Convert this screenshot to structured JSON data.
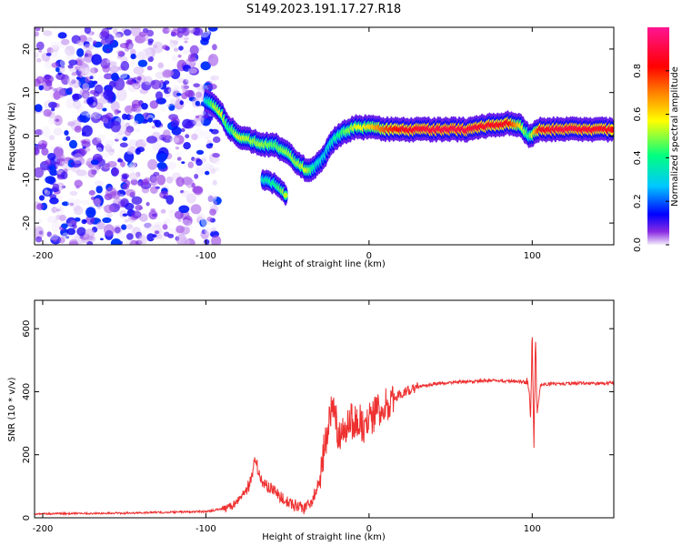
{
  "title": "S149.2023.191.17.27.R18",
  "chart_data": [
    {
      "type": "heatmap",
      "xlabel": "Height of straight line (km)",
      "ylabel": "Frequency (Hz)",
      "xlim": [
        -205,
        150
      ],
      "ylim": [
        -25,
        25
      ],
      "xticks": [
        -200,
        -100,
        0,
        100
      ],
      "yticks": [
        -20,
        -10,
        0,
        10,
        20
      ],
      "colorbar": {
        "label": "Normalized spectral amplitude",
        "range": [
          0,
          1
        ],
        "ticks": [
          "0.0",
          "0.2",
          "0.4",
          "0.6",
          "0.8"
        ],
        "colors": [
          "#f4eefc",
          "#8a2be2",
          "#0000ff",
          "#00c8ff",
          "#00ff80",
          "#ffff00",
          "#ff8000",
          "#ff0000",
          "#ff1493"
        ]
      },
      "noise_region_x": [
        -205,
        -93
      ],
      "ridge": [
        {
          "x": -100,
          "f": 8,
          "a": 0.3
        },
        {
          "x": -95,
          "f": 7,
          "a": 0.5
        },
        {
          "x": -90,
          "f": 5,
          "a": 0.55
        },
        {
          "x": -86,
          "f": 2,
          "a": 0.4
        },
        {
          "x": -80,
          "f": 0,
          "a": 0.55
        },
        {
          "x": -72,
          "f": -1,
          "a": 0.5
        },
        {
          "x": -65,
          "f": -2,
          "a": 0.5
        },
        {
          "x": -58,
          "f": -2,
          "a": 0.45
        },
        {
          "x": -50,
          "f": -4,
          "a": 0.5
        },
        {
          "x": -44,
          "f": -6,
          "a": 0.5
        },
        {
          "x": -38,
          "f": -8,
          "a": 0.55
        },
        {
          "x": -33,
          "f": -7,
          "a": 0.35
        },
        {
          "x": -28,
          "f": -5,
          "a": 0.3
        },
        {
          "x": -22,
          "f": -1,
          "a": 0.35
        },
        {
          "x": -15,
          "f": 1,
          "a": 0.45
        },
        {
          "x": -8,
          "f": 2,
          "a": 0.55
        },
        {
          "x": 0,
          "f": 2,
          "a": 0.6
        },
        {
          "x": 10,
          "f": 1.5,
          "a": 0.75
        },
        {
          "x": 20,
          "f": 1.5,
          "a": 0.85
        },
        {
          "x": 40,
          "f": 1.5,
          "a": 0.9
        },
        {
          "x": 60,
          "f": 1.5,
          "a": 0.9
        },
        {
          "x": 75,
          "f": 2.5,
          "a": 0.85
        },
        {
          "x": 85,
          "f": 3,
          "a": 0.85
        },
        {
          "x": 93,
          "f": 2.5,
          "a": 0.6
        },
        {
          "x": 98,
          "f": 0,
          "a": 0.4
        },
        {
          "x": 105,
          "f": 1.5,
          "a": 0.85
        },
        {
          "x": 120,
          "f": 1.5,
          "a": 0.9
        },
        {
          "x": 150,
          "f": 1.5,
          "a": 0.85
        }
      ],
      "secondary_branch": [
        {
          "x": -65,
          "f": -10,
          "a": 0.35
        },
        {
          "x": -57,
          "f": -11,
          "a": 0.4
        },
        {
          "x": -50,
          "f": -14,
          "a": 0.55
        }
      ],
      "grid": false
    },
    {
      "type": "line",
      "xlabel": "Height of straight line (km)",
      "ylabel": "SNR (10 * v/v)",
      "xlim": [
        -205,
        150
      ],
      "ylim": [
        0,
        690
      ],
      "xticks": [
        -200,
        -100,
        0,
        100
      ],
      "yticks": [
        0,
        200,
        400,
        600
      ],
      "line_color": "#ee3030",
      "series": [
        {
          "x": [
            -205,
            -180,
            -150,
            -120,
            -100,
            -90,
            -85,
            -80,
            -75,
            -72,
            -70,
            -68,
            -65,
            -60,
            -55,
            -50,
            -45,
            -40,
            -35,
            -30,
            -28,
            -25,
            -22,
            -20,
            -18,
            -15,
            -12,
            -10,
            -8,
            -5,
            -2,
            0,
            2,
            5,
            8,
            10,
            12,
            15,
            20,
            25,
            30,
            40,
            50,
            60,
            70,
            80,
            90,
            95,
            98,
            99,
            100,
            101,
            102,
            103,
            105,
            110,
            120,
            130,
            140,
            150
          ],
          "values": [
            12,
            14,
            15,
            18,
            20,
            28,
            35,
            55,
            90,
            120,
            200,
            150,
            110,
            90,
            70,
            50,
            40,
            30,
            55,
            120,
            200,
            300,
            350,
            300,
            250,
            280,
            320,
            300,
            320,
            300,
            290,
            305,
            320,
            340,
            300,
            360,
            370,
            380,
            395,
            405,
            415,
            425,
            430,
            432,
            435,
            435,
            433,
            430,
            420,
            300,
            600,
            210,
            580,
            330,
            420,
            425,
            425,
            428,
            425,
            428
          ]
        }
      ],
      "grid": false
    }
  ]
}
